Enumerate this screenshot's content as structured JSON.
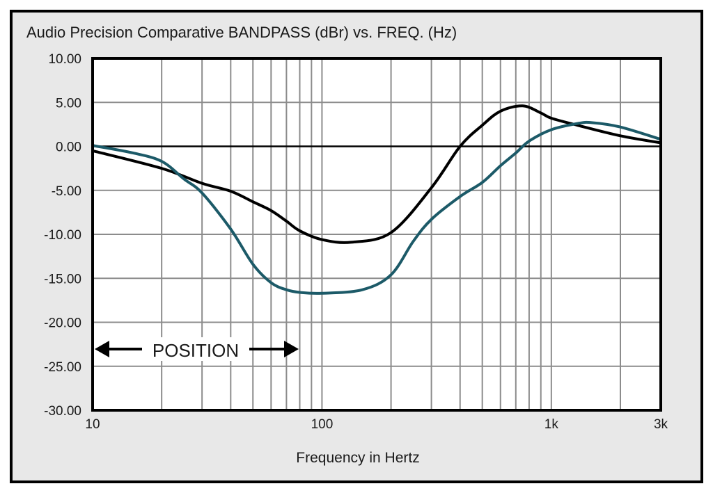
{
  "chart_data": {
    "type": "line",
    "title": "Audio Precision Comparative BANDPASS (dBr) vs. FREQ. (Hz)",
    "xlabel": "Frequency in Hertz",
    "ylabel": "",
    "xscale": "log",
    "xlim": [
      10,
      3000
    ],
    "ylim": [
      -30,
      10
    ],
    "grid": true,
    "x_tick_labels": [
      {
        "value": 10,
        "label": "10"
      },
      {
        "value": 100,
        "label": "100"
      },
      {
        "value": 1000,
        "label": "1k"
      },
      {
        "value": 3000,
        "label": "3k"
      }
    ],
    "y_tick_labels": [
      {
        "value": 10,
        "label": "10.00"
      },
      {
        "value": 5,
        "label": "5.00"
      },
      {
        "value": 0,
        "label": "0.00"
      },
      {
        "value": -5,
        "label": "-5.00"
      },
      {
        "value": -10,
        "label": "-10.00"
      },
      {
        "value": -15,
        "label": "-15.00"
      },
      {
        "value": -20,
        "label": "-20.00"
      },
      {
        "value": -25,
        "label": "-25.00"
      },
      {
        "value": -30,
        "label": "-30.00"
      }
    ],
    "annotation": {
      "text": "POSITION",
      "x_range": [
        10,
        85
      ],
      "y": -22.5
    },
    "series": [
      {
        "name": "black",
        "color": "#000000",
        "x": [
          10,
          20,
          30,
          40,
          50,
          60,
          70,
          80,
          100,
          134,
          200,
          300,
          400,
          500,
          600,
          750,
          900,
          1000,
          1300,
          2000,
          3000
        ],
        "y": [
          -0.5,
          -2.5,
          -4.2,
          -5.1,
          -6.3,
          -7.3,
          -8.5,
          -9.6,
          -10.6,
          -10.9,
          -9.8,
          -4.7,
          0.0,
          2.4,
          4.0,
          4.6,
          3.8,
          3.2,
          2.4,
          1.2,
          0.4
        ]
      },
      {
        "name": "teal",
        "color": "#1c5a68",
        "x": [
          10,
          15,
          20,
          25,
          30,
          40,
          50,
          60,
          70,
          80,
          100,
          150,
          200,
          250,
          300,
          400,
          500,
          600,
          700,
          800,
          1000,
          1300,
          1500,
          2000,
          3000
        ],
        "y": [
          0.1,
          -0.75,
          -1.7,
          -3.7,
          -5.3,
          -9.4,
          -13.4,
          -15.5,
          -16.3,
          -16.6,
          -16.7,
          -16.3,
          -14.6,
          -10.8,
          -8.3,
          -5.7,
          -4.1,
          -2.2,
          -0.75,
          0.6,
          1.9,
          2.6,
          2.7,
          2.2,
          0.8
        ]
      }
    ]
  }
}
